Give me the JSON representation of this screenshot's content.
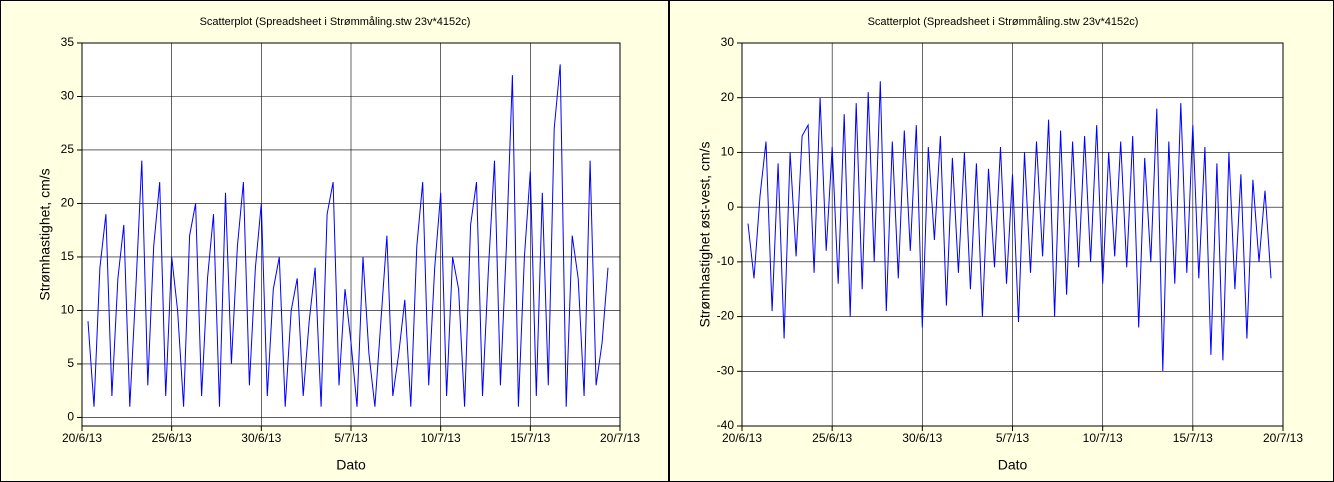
{
  "chart_data": [
    {
      "type": "line",
      "title": "Scatterplot (Spreadsheet i Strømmåling.stw 23v*4152c)",
      "xlabel": "Dato",
      "ylabel": "Strømhastighet, cm/s",
      "grid": true,
      "xlim": [
        "2013-06-20T00:00",
        "2013-07-20T00:00"
      ],
      "xticks": [
        {
          "value": "2013-06-20T00:00",
          "label": "20/6/13"
        },
        {
          "value": "2013-06-25T00:00",
          "label": "25/6/13"
        },
        {
          "value": "2013-06-30T00:00",
          "label": "30/6/13"
        },
        {
          "value": "2013-07-05T00:00",
          "label": "5/7/13"
        },
        {
          "value": "2013-07-10T00:00",
          "label": "10/7/13"
        },
        {
          "value": "2013-07-15T00:00",
          "label": "15/7/13"
        },
        {
          "value": "2013-07-20T00:00",
          "label": "20/7/13"
        }
      ],
      "ylim": [
        -0.8,
        35
      ],
      "yticks": [
        0,
        5,
        10,
        15,
        20,
        25,
        30,
        35
      ],
      "x": [
        "2013-06-20T08:00",
        "2013-06-20T16:00",
        "2013-06-21T00:00",
        "2013-06-21T08:00",
        "2013-06-21T16:00",
        "2013-06-22T00:00",
        "2013-06-22T08:00",
        "2013-06-22T16:00",
        "2013-06-23T00:00",
        "2013-06-23T08:00",
        "2013-06-23T16:00",
        "2013-06-24T00:00",
        "2013-06-24T08:00",
        "2013-06-24T16:00",
        "2013-06-25T00:00",
        "2013-06-25T08:00",
        "2013-06-25T16:00",
        "2013-06-26T00:00",
        "2013-06-26T08:00",
        "2013-06-26T16:00",
        "2013-06-27T00:00",
        "2013-06-27T08:00",
        "2013-06-27T16:00",
        "2013-06-28T00:00",
        "2013-06-28T08:00",
        "2013-06-28T16:00",
        "2013-06-29T00:00",
        "2013-06-29T08:00",
        "2013-06-29T16:00",
        "2013-06-30T00:00",
        "2013-06-30T08:00",
        "2013-06-30T16:00",
        "2013-07-01T00:00",
        "2013-07-01T08:00",
        "2013-07-01T16:00",
        "2013-07-02T00:00",
        "2013-07-02T08:00",
        "2013-07-02T16:00",
        "2013-07-03T00:00",
        "2013-07-03T08:00",
        "2013-07-03T16:00",
        "2013-07-04T00:00",
        "2013-07-04T08:00",
        "2013-07-04T16:00",
        "2013-07-05T00:00",
        "2013-07-05T08:00",
        "2013-07-05T16:00",
        "2013-07-06T00:00",
        "2013-07-06T08:00",
        "2013-07-06T16:00",
        "2013-07-07T00:00",
        "2013-07-07T08:00",
        "2013-07-07T16:00",
        "2013-07-08T00:00",
        "2013-07-08T08:00",
        "2013-07-08T16:00",
        "2013-07-09T00:00",
        "2013-07-09T08:00",
        "2013-07-09T16:00",
        "2013-07-10T00:00",
        "2013-07-10T08:00",
        "2013-07-10T16:00",
        "2013-07-11T00:00",
        "2013-07-11T08:00",
        "2013-07-11T16:00",
        "2013-07-12T00:00",
        "2013-07-12T08:00",
        "2013-07-12T16:00",
        "2013-07-13T00:00",
        "2013-07-13T08:00",
        "2013-07-13T16:00",
        "2013-07-14T00:00",
        "2013-07-14T08:00",
        "2013-07-14T16:00",
        "2013-07-15T00:00",
        "2013-07-15T08:00",
        "2013-07-15T16:00",
        "2013-07-16T00:00",
        "2013-07-16T08:00",
        "2013-07-16T16:00",
        "2013-07-17T00:00",
        "2013-07-17T08:00",
        "2013-07-17T16:00",
        "2013-07-18T00:00",
        "2013-07-18T08:00",
        "2013-07-18T16:00",
        "2013-07-19T00:00",
        "2013-07-19T08:00"
      ],
      "color": "#0000ff",
      "values": [
        9,
        1,
        14,
        19,
        2,
        13,
        18,
        1,
        12,
        24,
        3,
        16,
        22,
        2,
        15,
        10,
        1,
        17,
        20,
        2,
        13,
        19,
        1,
        21,
        5,
        16,
        22,
        3,
        14,
        20,
        2,
        12,
        15,
        1,
        10,
        13,
        2,
        9,
        14,
        1,
        19,
        22,
        3,
        12,
        7,
        1,
        15,
        6,
        1,
        9,
        17,
        2,
        6,
        11,
        1,
        16,
        22,
        3,
        14,
        21,
        2,
        15,
        12,
        1,
        18,
        22,
        2,
        14,
        24,
        3,
        16,
        32,
        1,
        15,
        23,
        2,
        21,
        3,
        27,
        33,
        1,
        17,
        13,
        2,
        24,
        3,
        7,
        14
      ]
    },
    {
      "type": "line",
      "title": "Scatterplot (Spreadsheet i Strømmåling.stw 23v*4152c)",
      "xlabel": "Dato",
      "ylabel": "Strømhastighet øst-vest, cm/s",
      "grid": true,
      "xlim": [
        "2013-06-20T00:00",
        "2013-07-20T00:00"
      ],
      "xticks": [
        {
          "value": "2013-06-20T00:00",
          "label": "20/6/13"
        },
        {
          "value": "2013-06-25T00:00",
          "label": "25/6/13"
        },
        {
          "value": "2013-06-30T00:00",
          "label": "30/6/13"
        },
        {
          "value": "2013-07-05T00:00",
          "label": "5/7/13"
        },
        {
          "value": "2013-07-10T00:00",
          "label": "10/7/13"
        },
        {
          "value": "2013-07-15T00:00",
          "label": "15/7/13"
        },
        {
          "value": "2013-07-20T00:00",
          "label": "20/7/13"
        }
      ],
      "ylim": [
        -40,
        30
      ],
      "yticks": [
        -40,
        -30,
        -20,
        -10,
        0,
        10,
        20,
        30
      ],
      "x": [
        "2013-06-20T08:00",
        "2013-06-20T16:00",
        "2013-06-21T00:00",
        "2013-06-21T08:00",
        "2013-06-21T16:00",
        "2013-06-22T00:00",
        "2013-06-22T08:00",
        "2013-06-22T16:00",
        "2013-06-23T00:00",
        "2013-06-23T08:00",
        "2013-06-23T16:00",
        "2013-06-24T00:00",
        "2013-06-24T08:00",
        "2013-06-24T16:00",
        "2013-06-25T00:00",
        "2013-06-25T08:00",
        "2013-06-25T16:00",
        "2013-06-26T00:00",
        "2013-06-26T08:00",
        "2013-06-26T16:00",
        "2013-06-27T00:00",
        "2013-06-27T08:00",
        "2013-06-27T16:00",
        "2013-06-28T00:00",
        "2013-06-28T08:00",
        "2013-06-28T16:00",
        "2013-06-29T00:00",
        "2013-06-29T08:00",
        "2013-06-29T16:00",
        "2013-06-30T00:00",
        "2013-06-30T08:00",
        "2013-06-30T16:00",
        "2013-07-01T00:00",
        "2013-07-01T08:00",
        "2013-07-01T16:00",
        "2013-07-02T00:00",
        "2013-07-02T08:00",
        "2013-07-02T16:00",
        "2013-07-03T00:00",
        "2013-07-03T08:00",
        "2013-07-03T16:00",
        "2013-07-04T00:00",
        "2013-07-04T08:00",
        "2013-07-04T16:00",
        "2013-07-05T00:00",
        "2013-07-05T08:00",
        "2013-07-05T16:00",
        "2013-07-06T00:00",
        "2013-07-06T08:00",
        "2013-07-06T16:00",
        "2013-07-07T00:00",
        "2013-07-07T08:00",
        "2013-07-07T16:00",
        "2013-07-08T00:00",
        "2013-07-08T08:00",
        "2013-07-08T16:00",
        "2013-07-09T00:00",
        "2013-07-09T08:00",
        "2013-07-09T16:00",
        "2013-07-10T00:00",
        "2013-07-10T08:00",
        "2013-07-10T16:00",
        "2013-07-11T00:00",
        "2013-07-11T08:00",
        "2013-07-11T16:00",
        "2013-07-12T00:00",
        "2013-07-12T08:00",
        "2013-07-12T16:00",
        "2013-07-13T00:00",
        "2013-07-13T08:00",
        "2013-07-13T16:00",
        "2013-07-14T00:00",
        "2013-07-14T08:00",
        "2013-07-14T16:00",
        "2013-07-15T00:00",
        "2013-07-15T08:00",
        "2013-07-15T16:00",
        "2013-07-16T00:00",
        "2013-07-16T08:00",
        "2013-07-16T16:00",
        "2013-07-17T00:00",
        "2013-07-17T08:00",
        "2013-07-17T16:00",
        "2013-07-18T00:00",
        "2013-07-18T08:00",
        "2013-07-18T16:00",
        "2013-07-19T00:00",
        "2013-07-19T08:00"
      ],
      "color": "#0000ff",
      "values": [
        -3,
        -13,
        2,
        12,
        -19,
        8,
        -24,
        10,
        -9,
        13,
        15,
        -12,
        20,
        -8,
        11,
        -14,
        17,
        -20,
        19,
        -15,
        21,
        -10,
        23,
        -19,
        12,
        -13,
        14,
        -8,
        15,
        -22,
        11,
        -6,
        13,
        -18,
        9,
        -12,
        10,
        -15,
        8,
        -20,
        7,
        -11,
        11,
        -14,
        6,
        -21,
        10,
        -12,
        12,
        -9,
        16,
        -20,
        14,
        -16,
        12,
        -11,
        13,
        -10,
        15,
        -14,
        10,
        -9,
        12,
        -11,
        13,
        -22,
        9,
        -10,
        18,
        -30,
        12,
        -14,
        19,
        -12,
        15,
        -13,
        11,
        -27,
        8,
        -28,
        10,
        -15,
        6,
        -24,
        5,
        -10,
        3,
        -13
      ]
    }
  ]
}
